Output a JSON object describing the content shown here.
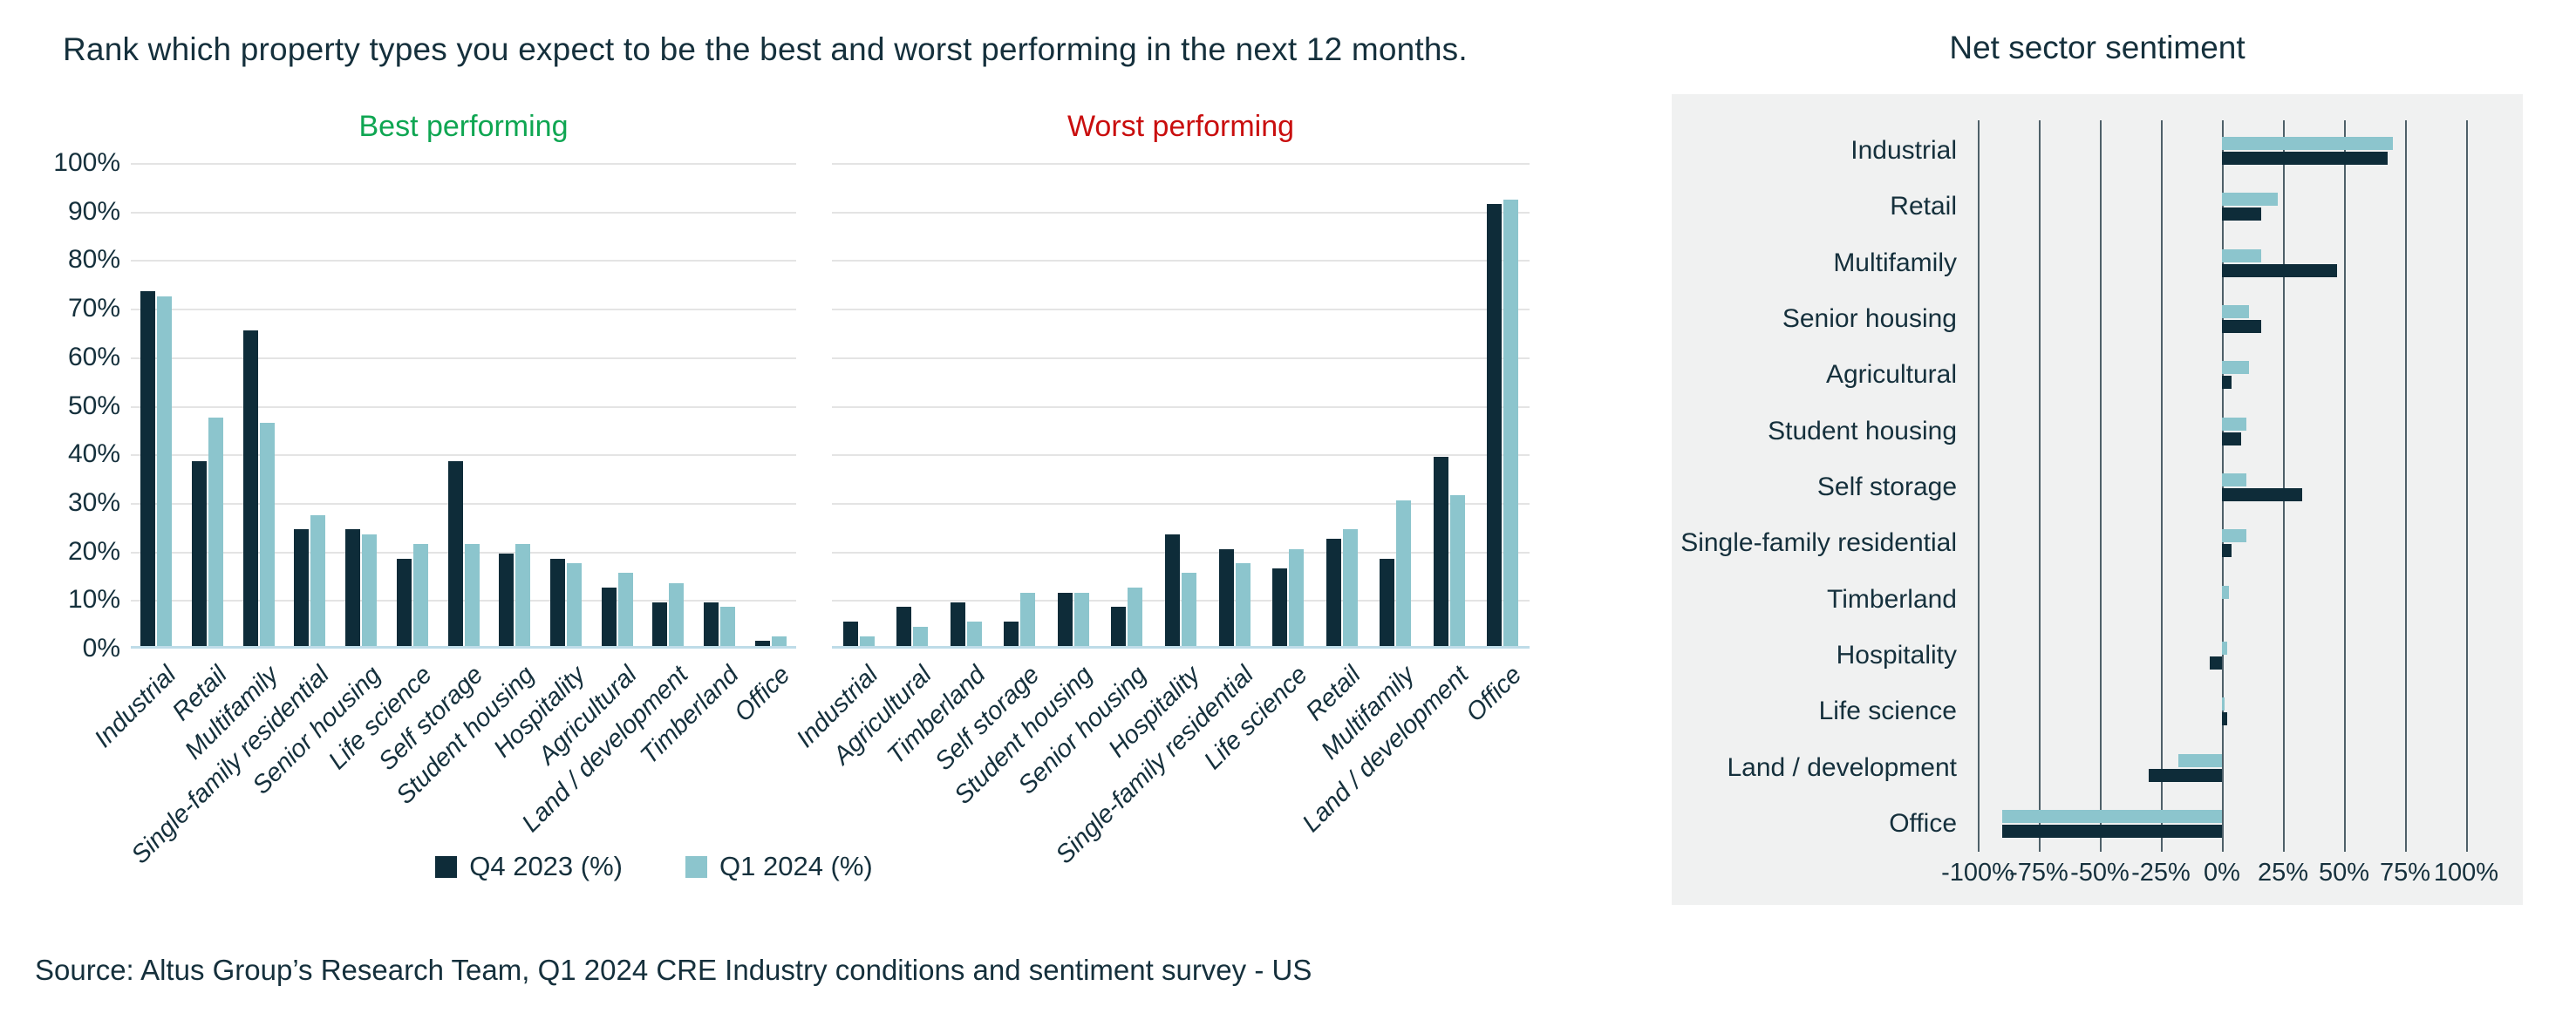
{
  "title": "Rank which property types you expect to be the best and worst performing in the next 12 months.",
  "source": "Source: Altus Group’s Research Team, Q1 2024 CRE Industry conditions and sentiment survey - US",
  "legend": {
    "items": [
      {
        "label": "Q4 2023 (%)",
        "color": "#0e2c39"
      },
      {
        "label": "Q1 2024 (%)",
        "color": "#8cc5cd"
      }
    ]
  },
  "colors": {
    "q4_dark": "#0e2c39",
    "q1_light": "#8cc5cd",
    "best_green": "#0fa652",
    "worst_red": "#c90e0e",
    "text_navy": "#15303c",
    "gridline": "#e4e4e4",
    "baseline_blue": "#bedce8",
    "panel_bg": "#f0f1f1",
    "panel_grid": "#4e6069"
  },
  "chart_data": [
    {
      "type": "bar",
      "orientation": "vertical",
      "title": "Best performing",
      "title_color": "#0fa652",
      "categories": [
        "Industrial",
        "Retail",
        "Multifamily",
        "Single-family residential",
        "Senior housing",
        "Life science",
        "Self storage",
        "Student housing",
        "Hospitality",
        "Agricultural",
        "Land / development",
        "Timberland",
        "Office"
      ],
      "series": [
        {
          "name": "Q4 2023 (%)",
          "values": [
            73,
            38,
            65,
            24,
            24,
            18,
            38,
            19,
            18,
            12,
            9,
            9,
            1
          ]
        },
        {
          "name": "Q1 2024 (%)",
          "values": [
            72,
            47,
            46,
            27,
            23,
            21,
            21,
            21,
            17,
            15,
            13,
            8,
            2
          ]
        }
      ],
      "ylim": [
        0,
        100
      ],
      "y_ticks": [
        "100%",
        "90%",
        "80%",
        "70%",
        "60%",
        "50%",
        "40%",
        "30%",
        "20%",
        "10%",
        "0%"
      ],
      "grid": true,
      "legend_position": "bottom"
    },
    {
      "type": "bar",
      "orientation": "vertical",
      "title": "Worst performing",
      "title_color": "#c90e0e",
      "categories": [
        "Industrial",
        "Agricultural",
        "Timberland",
        "Self storage",
        "Student housing",
        "Senior housing",
        "Hospitality",
        "Single-family residential",
        "Life science",
        "Retail",
        "Multifamily",
        "Land / development",
        "Office"
      ],
      "series": [
        {
          "name": "Q4 2023 (%)",
          "values": [
            5,
            8,
            9,
            5,
            11,
            8,
            23,
            20,
            16,
            22,
            18,
            39,
            91
          ]
        },
        {
          "name": "Q1 2024 (%)",
          "values": [
            2,
            4,
            5,
            11,
            11,
            12,
            15,
            17,
            20,
            24,
            30,
            31,
            92
          ]
        }
      ],
      "ylim": [
        0,
        100
      ],
      "y_ticks": [],
      "grid": true,
      "legend_position": "bottom"
    },
    {
      "type": "bar",
      "orientation": "horizontal",
      "title": "Net sector sentiment",
      "categories": [
        "Industrial",
        "Retail",
        "Multifamily",
        "Senior housing",
        "Agricultural",
        "Student housing",
        "Self storage",
        "Single-family residential",
        "Timberland",
        "Hospitality",
        "Life science",
        "Land / development",
        "Office"
      ],
      "series": [
        {
          "name": "Q4 2023 (%)",
          "values": [
            68,
            16,
            47,
            16,
            4,
            8,
            33,
            4,
            0,
            -5,
            2,
            -30,
            -90
          ]
        },
        {
          "name": "Q1 2024 (%)",
          "values": [
            70,
            23,
            16,
            11,
            11,
            10,
            10,
            10,
            3,
            2,
            1,
            -18,
            -90
          ]
        }
      ],
      "xlim": [
        -100,
        100
      ],
      "x_ticks": [
        "-100%",
        "-75%",
        "-50%",
        "-25%",
        "0%",
        "25%",
        "50%",
        "75%",
        "100%"
      ],
      "grid": true,
      "legend_position": "none"
    }
  ]
}
